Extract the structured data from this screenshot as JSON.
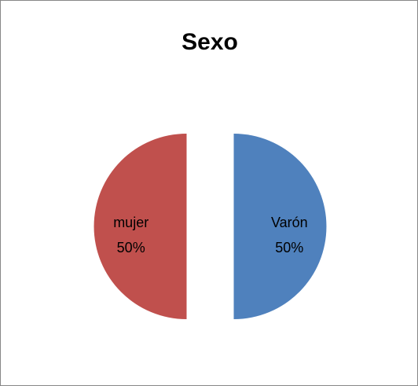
{
  "chart_data": {
    "type": "pie",
    "title": "Sexo",
    "categories": [
      "Varón",
      "mujer"
    ],
    "values": [
      50,
      50
    ],
    "value_labels": [
      "50%",
      "50%"
    ],
    "colors": [
      "#4f81bd",
      "#c0504d"
    ],
    "exploded": true
  }
}
